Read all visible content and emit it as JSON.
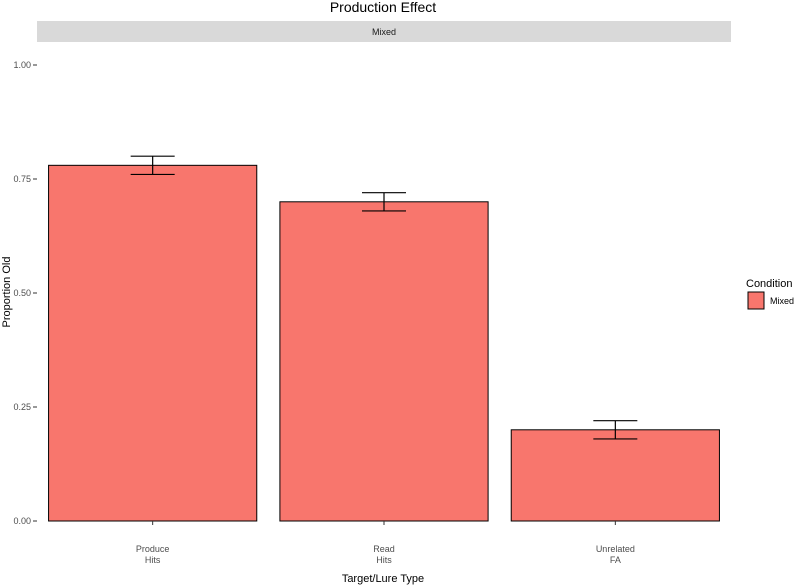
{
  "chart_data": {
    "type": "bar",
    "title": "Production Effect",
    "facet_label": "Mixed",
    "xlabel": "Target/Lure Type",
    "ylabel": "Proportion Old",
    "ylim": [
      0,
      1.0
    ],
    "yticks": [
      "0.00",
      "0.25",
      "0.50",
      "0.75",
      "1.00"
    ],
    "grid": false,
    "legend_position": "right",
    "legend_title": "Condition",
    "categories": [
      [
        "Produce",
        "Hits"
      ],
      [
        "Read",
        "Hits"
      ],
      [
        "Unrelated",
        "FA"
      ]
    ],
    "series": [
      {
        "name": "Mixed",
        "color": "#f8766d",
        "values": [
          0.78,
          0.7,
          0.2
        ],
        "error_low": [
          0.76,
          0.68,
          0.18
        ],
        "error_high": [
          0.8,
          0.72,
          0.22
        ]
      }
    ]
  }
}
